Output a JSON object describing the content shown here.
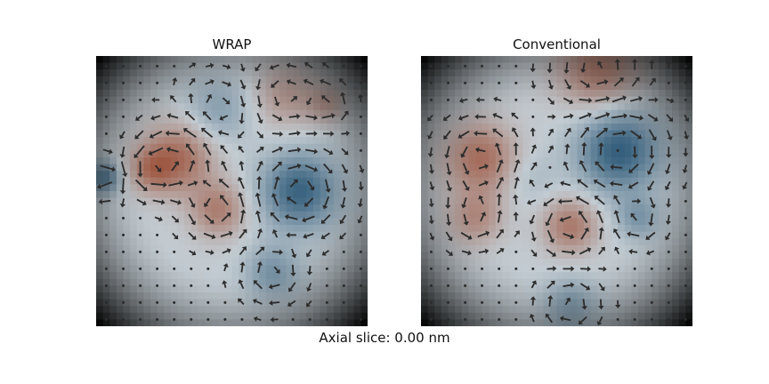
{
  "caption": "Axial slice: 0.00 nm",
  "chart_data": [
    {
      "type": "heatmap",
      "title": "WRAP",
      "overlay": "quiver",
      "grid": false,
      "axes_visible": false,
      "colors": {
        "positive": "#c8684a",
        "neutral": "#dde7ee",
        "negative": "#2f6a93",
        "vignette": "#000000"
      },
      "blobs": [
        {
          "cx": 0.3,
          "cy": 0.38,
          "r": 0.13,
          "v": 0.75
        },
        {
          "cx": 0.45,
          "cy": 0.57,
          "r": 0.1,
          "v": 0.6
        },
        {
          "cx": 0.2,
          "cy": 0.42,
          "r": 0.08,
          "v": 0.5
        },
        {
          "cx": 0.75,
          "cy": 0.5,
          "r": 0.14,
          "v": -0.85
        },
        {
          "cx": 0.65,
          "cy": 0.8,
          "r": 0.1,
          "v": -0.45
        },
        {
          "cx": 0.7,
          "cy": 0.15,
          "r": 0.12,
          "v": 0.4
        },
        {
          "cx": 0.03,
          "cy": 0.45,
          "r": 0.06,
          "v": -0.7
        },
        {
          "cx": 0.45,
          "cy": 0.2,
          "r": 0.12,
          "v": -0.35
        },
        {
          "cx": 0.85,
          "cy": 0.18,
          "r": 0.07,
          "v": 0.35
        }
      ]
    },
    {
      "type": "heatmap",
      "title": "Conventional",
      "overlay": "quiver",
      "grid": false,
      "axes_visible": false,
      "colors": {
        "positive": "#c8684a",
        "neutral": "#dde7ee",
        "negative": "#2f6a93",
        "vignette": "#000000"
      },
      "blobs": [
        {
          "cx": 0.22,
          "cy": 0.38,
          "r": 0.13,
          "v": 0.75
        },
        {
          "cx": 0.2,
          "cy": 0.6,
          "r": 0.1,
          "v": 0.5
        },
        {
          "cx": 0.55,
          "cy": 0.63,
          "r": 0.1,
          "v": 0.65
        },
        {
          "cx": 0.73,
          "cy": 0.35,
          "r": 0.15,
          "v": -0.9
        },
        {
          "cx": 0.8,
          "cy": 0.6,
          "r": 0.08,
          "v": -0.4
        },
        {
          "cx": 0.65,
          "cy": 0.05,
          "r": 0.15,
          "v": 0.65
        },
        {
          "cx": 0.55,
          "cy": 0.92,
          "r": 0.1,
          "v": -0.4
        },
        {
          "cx": 0.4,
          "cy": 0.45,
          "r": 0.1,
          "v": -0.15
        }
      ]
    }
  ]
}
